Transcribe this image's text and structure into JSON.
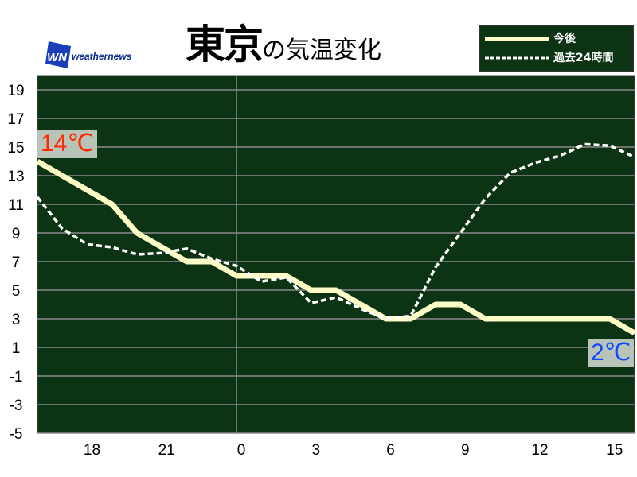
{
  "header": {
    "title_main": "東京",
    "title_sub": "の気温変化",
    "logo_text": "weathernews",
    "logo_mark": "WN"
  },
  "colors": {
    "plot_background": "#0c3314",
    "forecast_line": "#fefcc6",
    "past_line": "#ffffff",
    "gridline": "#8a8a8a",
    "start_label": "#ff2a00",
    "end_label": "#1446ff"
  },
  "chart_data": {
    "type": "line",
    "title": "東京の気温変化",
    "x": [
      16,
      17,
      18,
      19,
      20,
      21,
      22,
      23,
      0,
      1,
      2,
      3,
      4,
      5,
      6,
      7,
      8,
      9,
      10,
      11,
      12,
      13,
      14,
      15,
      16
    ],
    "x_tick_labels": [
      "18",
      "21",
      "0",
      "3",
      "6",
      "9",
      "12",
      "15"
    ],
    "y_tick_labels": [
      "19",
      "17",
      "15",
      "13",
      "11",
      "9",
      "7",
      "5",
      "3",
      "1",
      "-1",
      "-3",
      "-5"
    ],
    "ylim": [
      -5,
      20
    ],
    "grid": true,
    "legend_placement": "top-right",
    "series": [
      {
        "name": "今後",
        "style": "solid",
        "values": [
          14,
          13,
          12,
          11,
          9,
          8,
          7,
          7,
          6,
          6,
          6,
          5,
          5,
          4,
          3,
          3,
          4,
          4,
          3,
          3,
          3,
          3,
          3,
          3,
          2
        ]
      },
      {
        "name": "過去24時間",
        "style": "dashed",
        "values": [
          11.5,
          9.3,
          8.2,
          8.0,
          7.5,
          7.6,
          7.9,
          7.2,
          6.7,
          5.6,
          5.9,
          4.1,
          4.5,
          3.7,
          3.0,
          3.2,
          6.6,
          9.0,
          11.4,
          13.2,
          13.9,
          14.4,
          15.2,
          15.1,
          14.3
        ]
      }
    ],
    "annotations": {
      "start": "14℃",
      "end": "2℃"
    }
  }
}
